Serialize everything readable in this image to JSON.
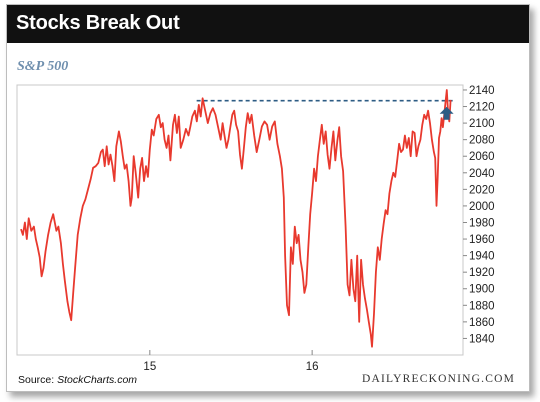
{
  "header": {
    "title": "Stocks Break Out"
  },
  "footer": {
    "source_prefix": "Source: ",
    "source_name": "StockCharts.com",
    "brand": "DAILYRECKONING.COM"
  },
  "colors": {
    "line": "#e8392e",
    "annotation": "#2d5c84",
    "header_bg": "#111111",
    "subtitle": "#6f8fae"
  },
  "chart_data": {
    "type": "line",
    "title": "S&P 500",
    "xlabel": "",
    "ylabel": "",
    "x_ticks": [
      {
        "t": 200,
        "label": "15"
      },
      {
        "t": 452,
        "label": "16"
      }
    ],
    "ylim": [
      1820,
      2146
    ],
    "y_ticks": [
      1840,
      1860,
      1880,
      1900,
      1920,
      1940,
      1960,
      1980,
      2000,
      2020,
      2040,
      2060,
      2080,
      2100,
      2120,
      2140
    ],
    "resistance_level": 2127,
    "series": [
      {
        "values": [
          [
            0,
            1972
          ],
          [
            3,
            1965
          ],
          [
            6,
            1980
          ],
          [
            9,
            1960
          ],
          [
            12,
            1985
          ],
          [
            16,
            1970
          ],
          [
            20,
            1975
          ],
          [
            23,
            1960
          ],
          [
            26,
            1950
          ],
          [
            29,
            1938
          ],
          [
            32,
            1915
          ],
          [
            35,
            1925
          ],
          [
            38,
            1945
          ],
          [
            42,
            1965
          ],
          [
            46,
            1980
          ],
          [
            50,
            1990
          ],
          [
            55,
            1970
          ],
          [
            58,
            1975
          ],
          [
            62,
            1955
          ],
          [
            65,
            1930
          ],
          [
            68,
            1910
          ],
          [
            72,
            1885
          ],
          [
            75,
            1872
          ],
          [
            78,
            1862
          ],
          [
            81,
            1895
          ],
          [
            84,
            1925
          ],
          [
            88,
            1965
          ],
          [
            92,
            1985
          ],
          [
            96,
            2000
          ],
          [
            100,
            2008
          ],
          [
            104,
            2020
          ],
          [
            108,
            2032
          ],
          [
            112,
            2046
          ],
          [
            116,
            2048
          ],
          [
            120,
            2052
          ],
          [
            124,
            2065
          ],
          [
            127,
            2068
          ],
          [
            130,
            2048
          ],
          [
            133,
            2072
          ],
          [
            136,
            2050
          ],
          [
            139,
            2062
          ],
          [
            142,
            2048
          ],
          [
            145,
            2030
          ],
          [
            148,
            2072
          ],
          [
            152,
            2090
          ],
          [
            155,
            2078
          ],
          [
            158,
            2060
          ],
          [
            161,
            2045
          ],
          [
            164,
            2050
          ],
          [
            167,
            2030
          ],
          [
            170,
            2000
          ],
          [
            172,
            2010
          ],
          [
            175,
            2060
          ],
          [
            178,
            2040
          ],
          [
            182,
            2010
          ],
          [
            185,
            2045
          ],
          [
            188,
            2058
          ],
          [
            191,
            2030
          ],
          [
            194,
            2048
          ],
          [
            197,
            2035
          ],
          [
            200,
            2068
          ],
          [
            203,
            2092
          ],
          [
            206,
            2085
          ],
          [
            210,
            2105
          ],
          [
            214,
            2110
          ],
          [
            217,
            2095
          ],
          [
            220,
            2100
          ],
          [
            223,
            2080
          ],
          [
            226,
            2070
          ],
          [
            229,
            2085
          ],
          [
            232,
            2055
          ],
          [
            236,
            2098
          ],
          [
            239,
            2110
          ],
          [
            242,
            2088
          ],
          [
            245,
            2108
          ],
          [
            248,
            2070
          ],
          [
            252,
            2080
          ],
          [
            256,
            2093
          ],
          [
            260,
            2085
          ],
          [
            263,
            2096
          ],
          [
            266,
            2108
          ],
          [
            270,
            2115
          ],
          [
            273,
            2102
          ],
          [
            276,
            2122
          ],
          [
            279,
            2108
          ],
          [
            282,
            2130
          ],
          [
            286,
            2115
          ],
          [
            290,
            2100
          ],
          [
            294,
            2112
          ],
          [
            298,
            2118
          ],
          [
            302,
            2110
          ],
          [
            306,
            2095
          ],
          [
            310,
            2080
          ],
          [
            313,
            2100
          ],
          [
            316,
            2085
          ],
          [
            319,
            2070
          ],
          [
            322,
            2080
          ],
          [
            325,
            2095
          ],
          [
            328,
            2110
          ],
          [
            331,
            2115
          ],
          [
            334,
            2098
          ],
          [
            337,
            2090
          ],
          [
            340,
            2062
          ],
          [
            343,
            2045
          ],
          [
            346,
            2070
          ],
          [
            349,
            2095
          ],
          [
            352,
            2112
          ],
          [
            355,
            2100
          ],
          [
            358,
            2110
          ],
          [
            362,
            2085
          ],
          [
            366,
            2065
          ],
          [
            370,
            2080
          ],
          [
            374,
            2096
          ],
          [
            378,
            2102
          ],
          [
            382,
            2098
          ],
          [
            386,
            2080
          ],
          [
            390,
            2096
          ],
          [
            394,
            2102
          ],
          [
            398,
            2075
          ],
          [
            402,
            2060
          ],
          [
            405,
            2045
          ],
          [
            408,
            2010
          ],
          [
            410,
            1940
          ],
          [
            413,
            1880
          ],
          [
            416,
            1868
          ],
          [
            419,
            1950
          ],
          [
            422,
            1930
          ],
          [
            425,
            1975
          ],
          [
            428,
            1955
          ],
          [
            431,
            1965
          ],
          [
            434,
            1935
          ],
          [
            437,
            1920
          ],
          [
            440,
            1895
          ],
          [
            443,
            1905
          ],
          [
            446,
            1950
          ],
          [
            449,
            1990
          ],
          [
            452,
            2015
          ],
          [
            455,
            2045
          ],
          [
            458,
            2030
          ],
          [
            461,
            2060
          ],
          [
            464,
            2080
          ],
          [
            467,
            2098
          ],
          [
            470,
            2075
          ],
          [
            473,
            2090
          ],
          [
            476,
            2062
          ],
          [
            479,
            2045
          ],
          [
            482,
            2070
          ],
          [
            485,
            2090
          ],
          [
            488,
            2055
          ],
          [
            491,
            2078
          ],
          [
            494,
            2095
          ],
          [
            497,
            2060
          ],
          [
            500,
            2042
          ],
          [
            502,
            2010
          ],
          [
            504,
            1975
          ],
          [
            507,
            1905
          ],
          [
            510,
            1892
          ],
          [
            513,
            1935
          ],
          [
            516,
            1900
          ],
          [
            519,
            1885
          ],
          [
            522,
            1940
          ],
          [
            525,
            1860
          ],
          [
            528,
            1935
          ],
          [
            531,
            1905
          ],
          [
            534,
            1888
          ],
          [
            537,
            1875
          ],
          [
            540,
            1860
          ],
          [
            543,
            1845
          ],
          [
            545,
            1830
          ],
          [
            548,
            1870
          ],
          [
            551,
            1920
          ],
          [
            554,
            1950
          ],
          [
            557,
            1935
          ],
          [
            560,
            1960
          ],
          [
            563,
            1978
          ],
          [
            566,
            1995
          ],
          [
            569,
            1990
          ],
          [
            572,
            2015
          ],
          [
            575,
            2030
          ],
          [
            578,
            2040
          ],
          [
            581,
            2035
          ],
          [
            584,
            2055
          ],
          [
            587,
            2075
          ],
          [
            590,
            2065
          ],
          [
            593,
            2068
          ],
          [
            596,
            2085
          ],
          [
            599,
            2070
          ],
          [
            602,
            2082
          ],
          [
            605,
            2060
          ],
          [
            608,
            2090
          ],
          [
            611,
            2088
          ],
          [
            614,
            2060
          ],
          [
            617,
            2072
          ],
          [
            620,
            2080
          ],
          [
            623,
            2098
          ],
          [
            626,
            2110
          ],
          [
            629,
            2105
          ],
          [
            632,
            2115
          ],
          [
            635,
            2100
          ],
          [
            638,
            2080
          ],
          [
            641,
            2065
          ],
          [
            643,
            2058
          ],
          [
            645,
            2000
          ],
          [
            647,
            2035
          ],
          [
            649,
            2082
          ],
          [
            651,
            2090
          ],
          [
            653,
            2106
          ],
          [
            655,
            2095
          ],
          [
            657,
            2110
          ],
          [
            659,
            2125
          ],
          [
            661,
            2140
          ],
          [
            663,
            2112
          ],
          [
            665,
            2102
          ],
          [
            667,
            2128
          ]
        ]
      }
    ]
  }
}
